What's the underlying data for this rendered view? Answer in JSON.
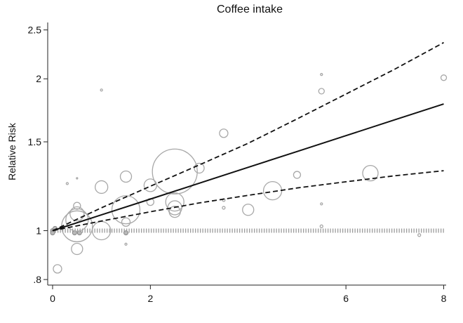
{
  "chart_data": {
    "type": "scatter",
    "title": "Coffee intake",
    "xlabel": "",
    "ylabel": "Relative Risk",
    "xlim": [
      -0.1,
      8.05
    ],
    "ylim": [
      0.78,
      2.62
    ],
    "y_scale": "log",
    "x_ticks": [
      0,
      2,
      6,
      8
    ],
    "x_tick_labels": [
      "0",
      "2",
      "6",
      "8"
    ],
    "y_ticks": [
      0.8,
      1,
      1.5,
      2,
      2.5
    ],
    "y_tick_labels": [
      ".8",
      "1",
      "1.5",
      "2",
      "2.5"
    ],
    "grid": false,
    "legend": "none",
    "reference_line": {
      "y": 1,
      "style": "dotted"
    },
    "fitted_curve": {
      "x": [
        0,
        1,
        2,
        3,
        4,
        5,
        6,
        7,
        8
      ],
      "y": [
        1.0,
        1.075,
        1.155,
        1.242,
        1.335,
        1.435,
        1.543,
        1.659,
        1.783
      ]
    },
    "ci_upper": {
      "x": [
        0,
        1,
        2,
        3,
        4,
        5,
        6,
        7,
        8
      ],
      "y": [
        1.0,
        1.11,
        1.225,
        1.35,
        1.49,
        1.665,
        1.865,
        2.09,
        2.36
      ]
    },
    "ci_lower": {
      "x": [
        0,
        1,
        2,
        3,
        4,
        5,
        6,
        7,
        8
      ],
      "y": [
        1.0,
        1.045,
        1.09,
        1.135,
        1.175,
        1.215,
        1.25,
        1.285,
        1.315
      ]
    },
    "points": [
      {
        "x": 0,
        "y": 1.0,
        "size": 3,
        "ref": true
      },
      {
        "x": 0,
        "y": 0.99,
        "size": 3,
        "ref": true
      },
      {
        "x": 0.05,
        "y": 1.01,
        "size": 3,
        "ref": true
      },
      {
        "x": 0.45,
        "y": 0.99,
        "size": 3,
        "ref": true
      },
      {
        "x": 0.55,
        "y": 0.99,
        "size": 3,
        "ref": true
      },
      {
        "x": 1.5,
        "y": 0.99,
        "size": 3,
        "ref": true
      },
      {
        "x": 0.1,
        "y": 0.84,
        "size": 6
      },
      {
        "x": 0.3,
        "y": 1.24,
        "size": 1.5
      },
      {
        "x": 0.5,
        "y": 1.27,
        "size": 1
      },
      {
        "x": 0.5,
        "y": 1.02,
        "size": 22
      },
      {
        "x": 0.5,
        "y": 1.05,
        "size": 16
      },
      {
        "x": 0.5,
        "y": 1.08,
        "size": 10
      },
      {
        "x": 0.5,
        "y": 1.12,
        "size": 5
      },
      {
        "x": 0.5,
        "y": 0.92,
        "size": 8
      },
      {
        "x": 1.0,
        "y": 1.0,
        "size": 13
      },
      {
        "x": 1.0,
        "y": 1.22,
        "size": 9
      },
      {
        "x": 1.0,
        "y": 1.9,
        "size": 1.5
      },
      {
        "x": 1.5,
        "y": 1.28,
        "size": 8
      },
      {
        "x": 1.5,
        "y": 1.1,
        "size": 20
      },
      {
        "x": 1.5,
        "y": 1.04,
        "size": 6
      },
      {
        "x": 1.5,
        "y": 0.94,
        "size": 1.5
      },
      {
        "x": 2.0,
        "y": 1.23,
        "size": 9
      },
      {
        "x": 2.0,
        "y": 1.14,
        "size": 5
      },
      {
        "x": 2.5,
        "y": 1.31,
        "size": 32
      },
      {
        "x": 2.5,
        "y": 1.14,
        "size": 13
      },
      {
        "x": 2.5,
        "y": 1.11,
        "size": 10
      },
      {
        "x": 2.5,
        "y": 1.09,
        "size": 8
      },
      {
        "x": 3.0,
        "y": 1.33,
        "size": 7
      },
      {
        "x": 3.5,
        "y": 1.56,
        "size": 6
      },
      {
        "x": 3.5,
        "y": 1.15,
        "size": 2
      },
      {
        "x": 3.5,
        "y": 1.11,
        "size": 2
      },
      {
        "x": 4.0,
        "y": 1.1,
        "size": 8
      },
      {
        "x": 4.5,
        "y": 1.2,
        "size": 13
      },
      {
        "x": 5.0,
        "y": 1.29,
        "size": 5
      },
      {
        "x": 5.5,
        "y": 2.04,
        "size": 1.5
      },
      {
        "x": 5.5,
        "y": 1.89,
        "size": 4
      },
      {
        "x": 5.5,
        "y": 1.13,
        "size": 1.5
      },
      {
        "x": 5.5,
        "y": 1.02,
        "size": 2
      },
      {
        "x": 6.5,
        "y": 1.3,
        "size": 11
      },
      {
        "x": 7.5,
        "y": 0.98,
        "size": 2
      },
      {
        "x": 8.0,
        "y": 2.01,
        "size": 4
      }
    ]
  }
}
